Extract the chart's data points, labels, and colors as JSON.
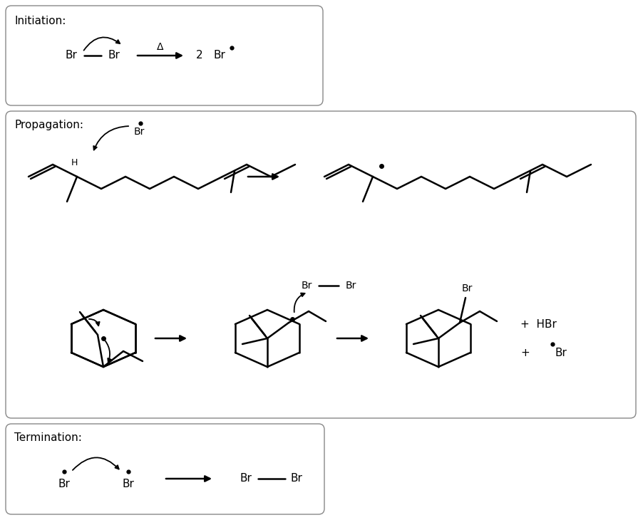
{
  "bg_color": "#ffffff",
  "border_color": "#888888",
  "initiation_label": "Initiation:",
  "propagation_label": "Propagation:",
  "termination_label": "Termination:"
}
